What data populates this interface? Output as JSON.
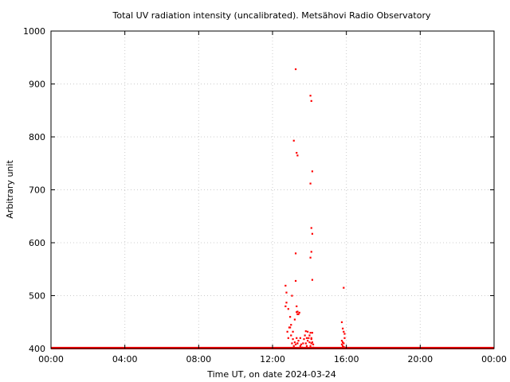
{
  "chart_data": {
    "type": "scatter",
    "title": "Total UV radiation intensity (uncalibrated). Metsähovi Radio Observatory",
    "xlabel": "Time UT, on date 2024-03-24",
    "ylabel": "Arbitrary unit",
    "xlim": [
      0,
      24
    ],
    "ylim": [
      400,
      1000
    ],
    "x_tick_values": [
      0,
      4,
      8,
      12,
      16,
      20,
      24
    ],
    "x_tick_labels": [
      "00:00",
      "04:00",
      "08:00",
      "12:00",
      "16:00",
      "20:00",
      "00:00"
    ],
    "y_tick_values": [
      400,
      500,
      600,
      700,
      800,
      900,
      1000
    ],
    "y_tick_labels": [
      "400",
      "500",
      "600",
      "700",
      "800",
      "900",
      "1000"
    ],
    "grid": true,
    "legend": "none",
    "series": [
      {
        "color": "#ff0000",
        "baseline_value": 401,
        "x": [
          12.7,
          12.75,
          12.8,
          12.85,
          12.9,
          12.95,
          13.0,
          13.0,
          13.05,
          13.05,
          13.1,
          13.1,
          13.15,
          13.2,
          13.2,
          13.25,
          13.3,
          13.3,
          13.35,
          13.35,
          13.4,
          13.4,
          13.45,
          13.5,
          13.5,
          13.55,
          13.6,
          13.65,
          13.7,
          13.75,
          13.8,
          13.8,
          13.85,
          13.85,
          13.9,
          13.9,
          13.95,
          14.0,
          14.0,
          14.05,
          14.05,
          14.1,
          14.1,
          14.1,
          14.15,
          14.15,
          14.2,
          14.2,
          12.7,
          12.75,
          12.85,
          12.95,
          13.25,
          13.15,
          13.3,
          13.35,
          14.05,
          14.1,
          14.15,
          14.05,
          14.1,
          14.15,
          14.1,
          14.15,
          14.05,
          13.25,
          13.25,
          13.3,
          13.35,
          13.35,
          15.75,
          15.8,
          15.85,
          15.85,
          15.9,
          15.9,
          15.75,
          15.8,
          15.85,
          15.75,
          15.8,
          15.85,
          15.9
        ],
        "y": [
          480,
          487,
          432,
          420,
          440,
          460,
          445,
          425,
          500,
          410,
          432,
          418,
          405,
          455,
          412,
          408,
          480,
          420,
          470,
          410,
          465,
          415,
          468,
          405,
          420,
          408,
          402,
          410,
          418,
          425,
          433,
          410,
          420,
          405,
          432,
          415,
          420,
          425,
          412,
          430,
          405,
          420,
          418,
          410,
          430,
          412,
          408,
          402,
          519,
          506,
          475,
          440,
          928,
          793,
          770,
          765,
          878,
          868,
          735,
          712,
          628,
          617,
          583,
          530,
          572,
          580,
          528,
          469,
          465,
          410,
          450,
          438,
          515,
          432,
          428,
          420,
          415,
          412,
          410,
          408,
          405,
          403,
          402
        ]
      }
    ]
  }
}
